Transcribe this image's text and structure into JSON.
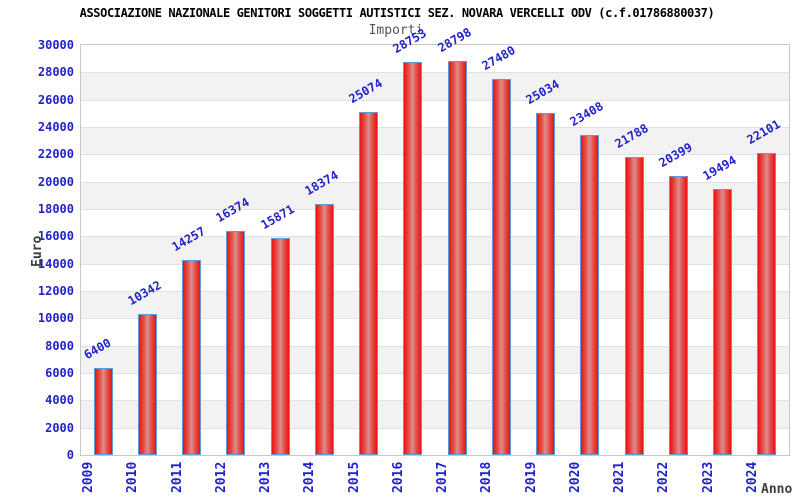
{
  "header": {
    "title": "ASSOCIAZIONE NAZIONALE GENITORI SOGGETTI AUTISTICI SEZ. NOVARA VERCELLI ODV (c.f.01786880037)",
    "subtitle": "Importi"
  },
  "chart_data": {
    "type": "bar",
    "title": "Importi",
    "categories": [
      "2009",
      "2010",
      "2011",
      "2012",
      "2013",
      "2014",
      "2015",
      "2016",
      "2017",
      "2018",
      "2019",
      "2020",
      "2021",
      "2022",
      "2023",
      "2024"
    ],
    "values": [
      6400,
      10342,
      14257,
      16374,
      15871,
      18374,
      25074,
      28753,
      28798,
      27480,
      25034,
      23408,
      21788,
      20399,
      19494,
      22101
    ],
    "xlabel": "Anno",
    "ylabel": "Euro",
    "ylim": [
      0,
      30000
    ],
    "ytick_step": 2000,
    "grid": true,
    "legend": false,
    "bar_labels_rotated": true,
    "style": {
      "label_blue": "#2222cc",
      "title_color": "#000000",
      "subtitle_color": "#555555",
      "axis_title_color": "#3d3d3d",
      "band_color": "#f2f2f2",
      "grid_color": "#e1e1e1",
      "plot_border_color": "#c8c8c8",
      "bar_border_color": "#5b9ddb",
      "bar_edge_color": "#ec1212",
      "bar_mid_color": "#db8f8e"
    }
  }
}
